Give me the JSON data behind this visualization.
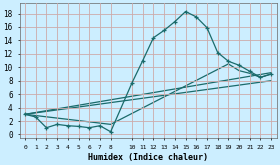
{
  "xlabel": "Humidex (Indice chaleur)",
  "background_color": "#cceeff",
  "grid_color": "#ccaaaa",
  "line_color": "#1a6b6b",
  "xlim": [
    -0.5,
    23.5
  ],
  "ylim": [
    -0.5,
    19.5
  ],
  "yticks": [
    0,
    2,
    4,
    6,
    8,
    10,
    12,
    14,
    16,
    18
  ],
  "x_ticks": [
    0,
    1,
    2,
    3,
    4,
    5,
    6,
    7,
    8,
    10,
    11,
    12,
    13,
    14,
    15,
    16,
    17,
    18,
    19,
    20,
    21,
    22,
    23
  ],
  "line1_x": [
    0,
    1,
    2,
    3,
    4,
    5,
    6,
    7,
    8,
    10,
    11,
    12,
    13,
    14,
    15,
    16,
    17,
    18,
    19,
    20,
    21,
    22,
    23
  ],
  "line1_y": [
    3.0,
    2.6,
    1.0,
    1.5,
    1.3,
    1.2,
    1.0,
    1.3,
    0.4,
    7.7,
    11.0,
    14.4,
    15.5,
    16.8,
    18.3,
    17.5,
    15.9,
    12.2,
    10.9,
    10.3,
    9.4,
    8.5,
    9.0
  ],
  "line2_x": [
    0,
    23
  ],
  "line2_y": [
    3.0,
    9.2
  ],
  "line3_x": [
    0,
    23
  ],
  "line3_y": [
    3.0,
    8.0
  ],
  "line4_x": [
    0,
    8,
    19,
    20,
    21,
    22,
    23
  ],
  "line4_y": [
    3.0,
    1.5,
    10.5,
    9.5,
    9.1,
    8.5,
    9.0
  ]
}
